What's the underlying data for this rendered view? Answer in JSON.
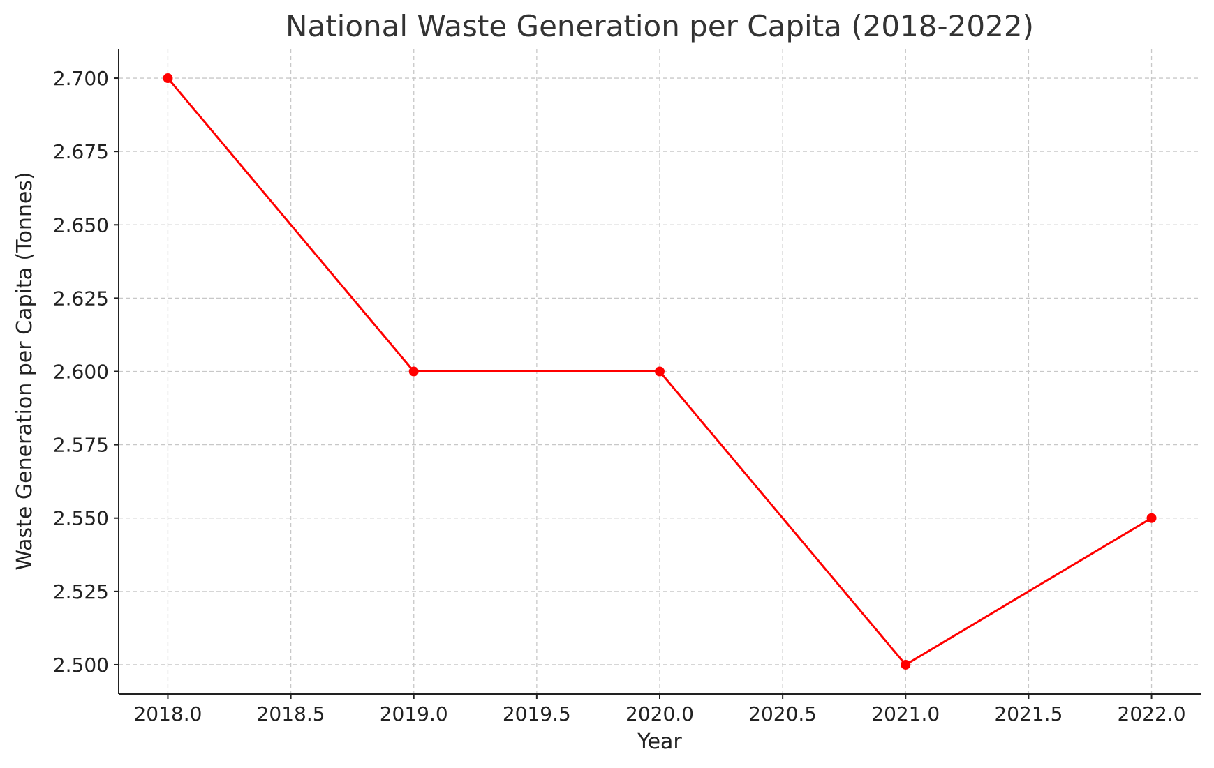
{
  "chart_data": {
    "type": "line",
    "title": "National Waste Generation per Capita (2018-2022)",
    "xlabel": "Year",
    "ylabel": "Waste Generation per Capita (Tonnes)",
    "xlim": [
      2017.8,
      2022.2
    ],
    "ylim": [
      2.49,
      2.71
    ],
    "x_ticks": [
      2018.0,
      2018.5,
      2019.0,
      2019.5,
      2020.0,
      2020.5,
      2021.0,
      2021.5,
      2022.0
    ],
    "x_tick_labels": [
      "2018.0",
      "2018.5",
      "2019.0",
      "2019.5",
      "2020.0",
      "2020.5",
      "2021.0",
      "2021.5",
      "2022.0"
    ],
    "y_ticks": [
      2.5,
      2.525,
      2.55,
      2.575,
      2.6,
      2.625,
      2.65,
      2.675,
      2.7
    ],
    "y_tick_labels": [
      "2.500",
      "2.525",
      "2.550",
      "2.575",
      "2.600",
      "2.625",
      "2.650",
      "2.675",
      "2.700"
    ],
    "grid": true,
    "series": [
      {
        "name": "Waste Generation per Capita",
        "color": "#ff0000",
        "marker": "circle",
        "x": [
          2018,
          2019,
          2020,
          2021,
          2022
        ],
        "values": [
          2.7,
          2.6,
          2.6,
          2.5,
          2.55
        ]
      }
    ]
  }
}
